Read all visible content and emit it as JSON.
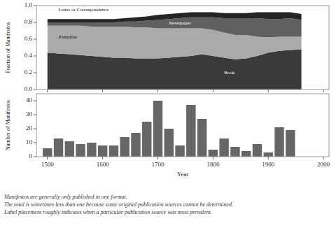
{
  "chart_data": [
    {
      "type": "area",
      "stacked": true,
      "x": [
        1500,
        1520,
        1540,
        1560,
        1580,
        1600,
        1620,
        1640,
        1660,
        1680,
        1700,
        1720,
        1740,
        1760,
        1780,
        1800,
        1820,
        1840,
        1860,
        1880,
        1900,
        1920,
        1940,
        1960
      ],
      "series": [
        {
          "name": "Book",
          "color": "#3a3a3a",
          "values": [
            0.44,
            0.43,
            0.42,
            0.41,
            0.4,
            0.39,
            0.38,
            0.38,
            0.37,
            0.37,
            0.37,
            0.38,
            0.39,
            0.4,
            0.42,
            0.4,
            0.38,
            0.36,
            0.37,
            0.4,
            0.44,
            0.46,
            0.47,
            0.48
          ]
        },
        {
          "name": "Pamphlet",
          "color": "#aaaaaa",
          "values": [
            0.32,
            0.33,
            0.34,
            0.35,
            0.35,
            0.36,
            0.37,
            0.37,
            0.37,
            0.37,
            0.36,
            0.35,
            0.34,
            0.33,
            0.31,
            0.31,
            0.3,
            0.29,
            0.28,
            0.23,
            0.18,
            0.17,
            0.16,
            0.15
          ]
        },
        {
          "name": "Newspaper",
          "color": "#606060",
          "values": [
            0.04,
            0.04,
            0.04,
            0.04,
            0.05,
            0.05,
            0.05,
            0.06,
            0.07,
            0.08,
            0.1,
            0.11,
            0.12,
            0.13,
            0.13,
            0.15,
            0.17,
            0.2,
            0.2,
            0.22,
            0.22,
            0.21,
            0.22,
            0.2
          ]
        },
        {
          "name": "Letter or Correspondence",
          "color": "#252525",
          "values": [
            0.04,
            0.04,
            0.04,
            0.04,
            0.04,
            0.04,
            0.04,
            0.04,
            0.05,
            0.05,
            0.06,
            0.06,
            0.06,
            0.06,
            0.06,
            0.06,
            0.06,
            0.06,
            0.06,
            0.07,
            0.08,
            0.08,
            0.07,
            0.07
          ]
        }
      ],
      "xlim": [
        1480,
        2010
      ],
      "xticks": [
        1500,
        1600,
        1700,
        1800,
        1900,
        2000
      ],
      "ylim": [
        0,
        1
      ],
      "yticks": [
        {
          "value": 0,
          "label": "0.0"
        },
        0.2,
        0.4,
        0.6,
        0.8,
        {
          "value": 1,
          "label": "1.0"
        }
      ],
      "y_label": "Fraction of Manifestos",
      "tick_labels": "y"
    },
    {
      "type": "bar",
      "x": [
        1500,
        1520,
        1540,
        1560,
        1580,
        1600,
        1620,
        1640,
        1660,
        1680,
        1700,
        1720,
        1740,
        1760,
        1780,
        1800,
        1820,
        1840,
        1860,
        1880,
        1900,
        1920,
        1940
      ],
      "values": [
        6,
        13,
        11,
        9,
        10,
        8,
        8,
        14,
        17,
        25,
        40,
        20,
        8,
        37,
        27,
        5,
        13,
        7,
        4,
        9,
        3,
        21,
        19
      ],
      "color": "#666666",
      "xlim": [
        1480,
        2010
      ],
      "xticks": [
        1500,
        1600,
        1700,
        1800,
        1900,
        2000
      ],
      "ylim": [
        0,
        45
      ],
      "yticks": [
        0,
        10,
        20,
        30,
        40
      ],
      "x_label": "Year",
      "y_label": "Number of Manifestos",
      "footnote": "Manifestos are generally only published in one format.\nThe total is sometimes less than one because some original publication sources cannot be determined.\nLabel placement roughly indicates when a particular publication source was most prevalent."
    }
  ]
}
